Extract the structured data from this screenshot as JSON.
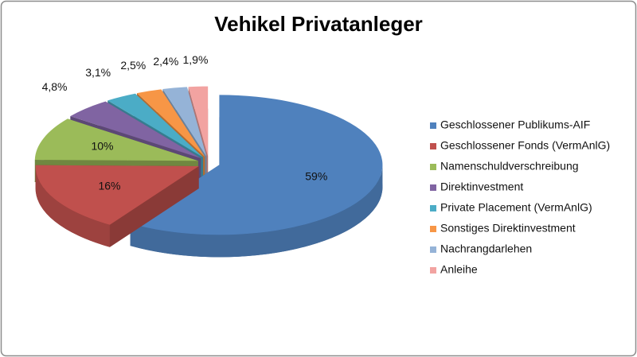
{
  "chart_data": {
    "type": "pie",
    "title": "Vehikel Privatanleger",
    "categories": [
      "Geschlossener Publikums-AIF",
      "Geschlossener Fonds (VermAnlG)",
      "Namenschuldverschreibung",
      "Direktinvestment",
      "Private Placement (VermAnlG)",
      "Sonstiges Direktinvestment",
      "Nachrangdarlehen",
      "Anleihe"
    ],
    "values": [
      59,
      16,
      10,
      4.8,
      3.1,
      2.5,
      2.4,
      1.9
    ],
    "value_labels": [
      "59%",
      "16%",
      "10%",
      "4,8%",
      "3,1%",
      "2,5%",
      "2,4%",
      "1,9%"
    ],
    "colors": [
      "#4f81bd",
      "#c0504d",
      "#9bbb59",
      "#8064a2",
      "#4bacc6",
      "#f79646",
      "#95b3d7",
      "#f2a3a1"
    ],
    "legend": "right"
  }
}
